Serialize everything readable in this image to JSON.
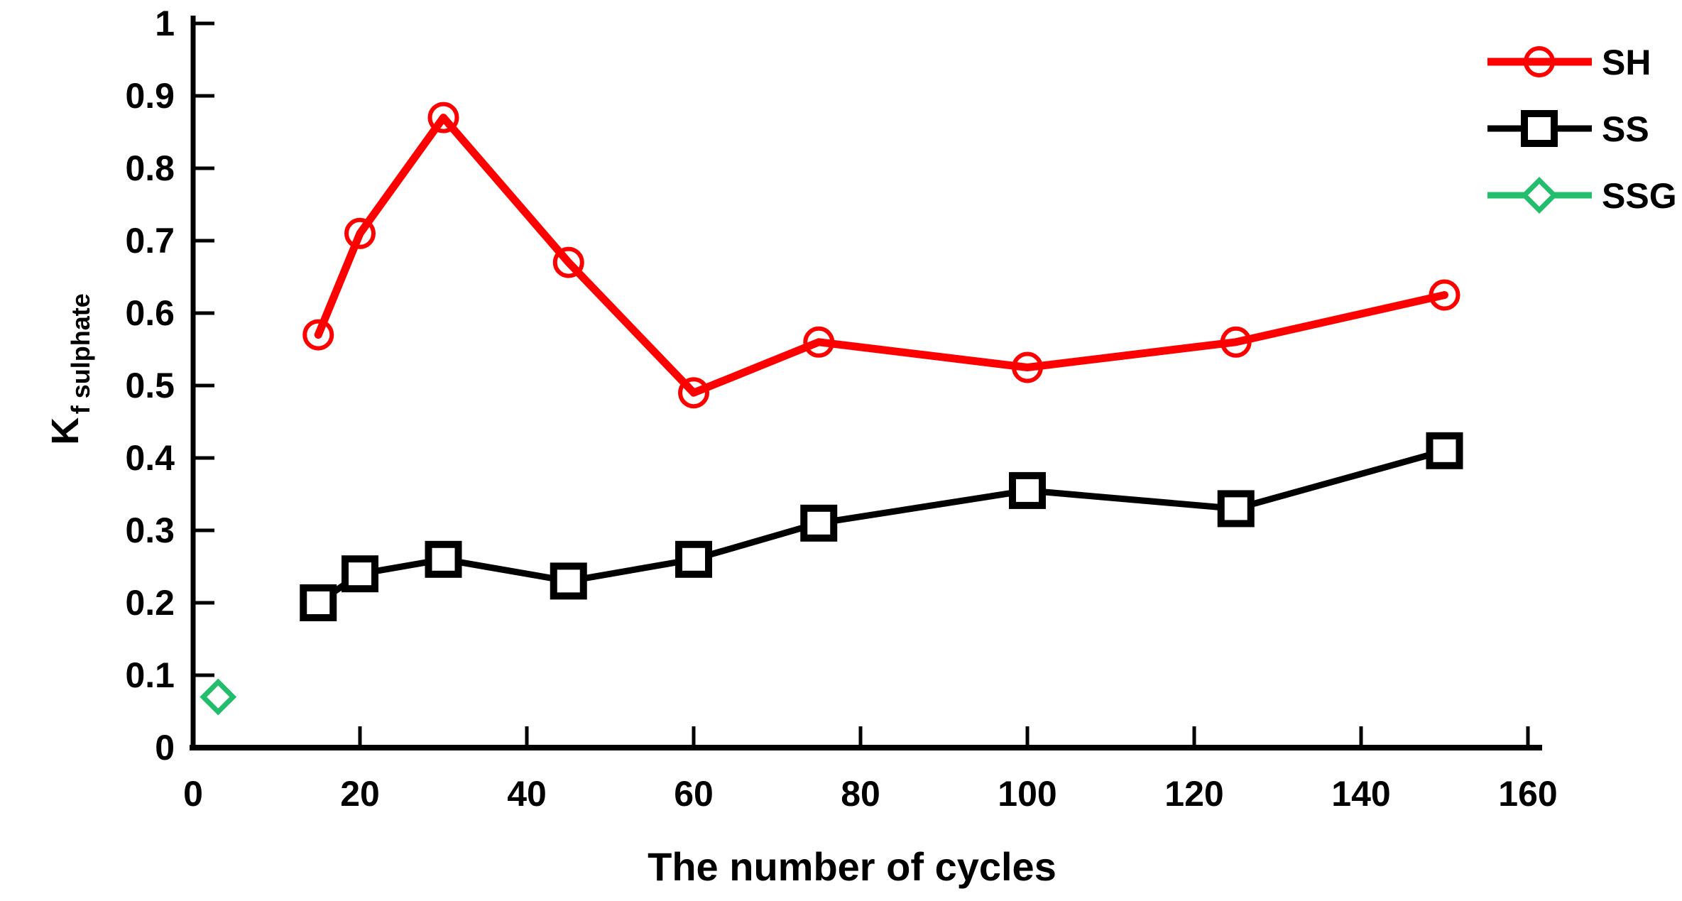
{
  "figure": {
    "background": "#ffffff",
    "axis_color": "#000000",
    "text_color": "#000000",
    "marker_fill": "#ffffff"
  },
  "chart_data": {
    "type": "line",
    "title": "",
    "xlabel": "The number of cycles",
    "ylabel_base": "K",
    "ylabel_subscript": "f sulphate",
    "xlim": [
      0,
      160
    ],
    "ylim": [
      0,
      1
    ],
    "grid": false,
    "legend_position": "top-right",
    "x_ticks": [
      0,
      20,
      40,
      60,
      80,
      100,
      120,
      140,
      160
    ],
    "x_tick_labels": [
      "0",
      "20",
      "40",
      "60",
      "80",
      "100",
      "120",
      "140",
      "160"
    ],
    "y_ticks": [
      0,
      0.1,
      0.2,
      0.3,
      0.4,
      0.5,
      0.6,
      0.7,
      0.8,
      0.9,
      1
    ],
    "y_tick_labels": [
      "0",
      "0.1",
      "0.2",
      "0.3",
      "0.4",
      "0.5",
      "0.6",
      "0.7",
      "0.8",
      "0.9",
      "1"
    ],
    "series": [
      {
        "name": "SH",
        "color": "#ff0000",
        "marker": "circle",
        "line_width": 11,
        "x": [
          15,
          20,
          30,
          45,
          60,
          75,
          100,
          125,
          150
        ],
        "y": [
          0.57,
          0.71,
          0.87,
          0.67,
          0.49,
          0.56,
          0.525,
          0.56,
          0.625
        ]
      },
      {
        "name": "SS",
        "color": "#000000",
        "marker": "square",
        "line_width": 9,
        "x": [
          15,
          20,
          30,
          45,
          60,
          75,
          100,
          125,
          150
        ],
        "y": [
          0.2,
          0.24,
          0.26,
          0.23,
          0.26,
          0.31,
          0.355,
          0.33,
          0.41
        ]
      },
      {
        "name": "SSG",
        "color": "#22be6e",
        "marker": "diamond",
        "line_width": 9,
        "x": [
          3
        ],
        "y": [
          0.07
        ]
      }
    ]
  },
  "legend": {
    "items": [
      {
        "label": "SH"
      },
      {
        "label": "SS"
      },
      {
        "label": "SSG"
      }
    ]
  }
}
